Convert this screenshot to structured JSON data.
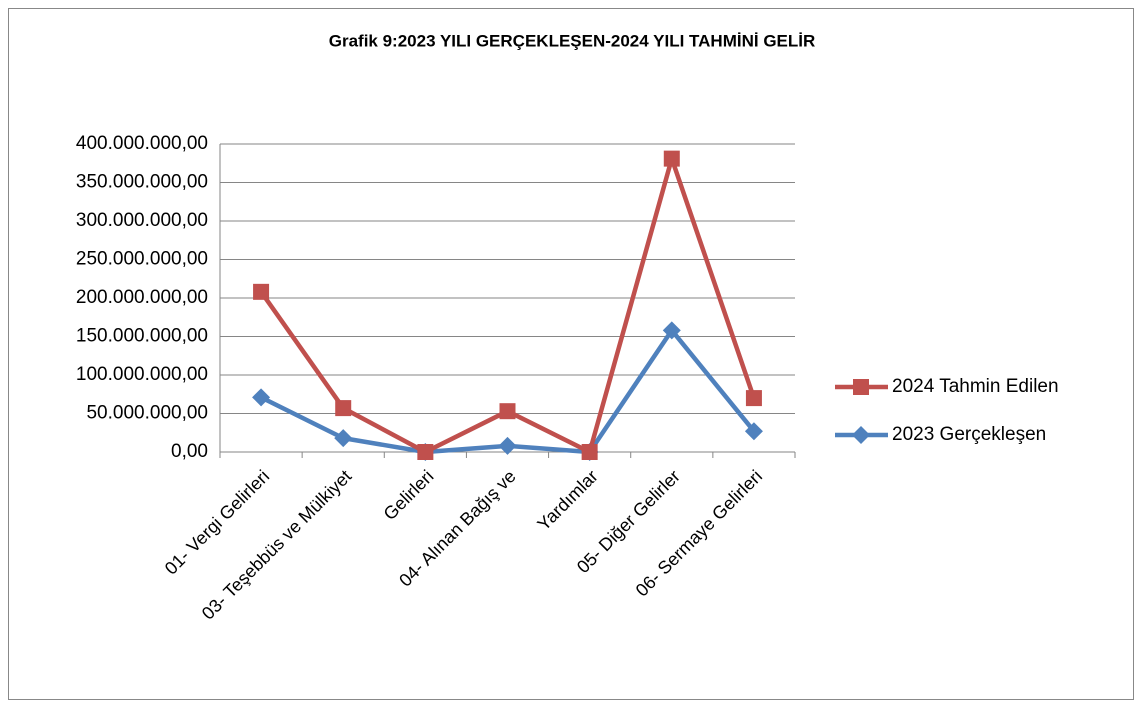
{
  "chart_data": {
    "type": "line",
    "title": "Grafik 9:2023 YILI GERÇEKLEŞEN-2024 YILI TAHMİNİ GELİR",
    "categories": [
      "01- Vergi Gelirleri",
      "03- Teşebbüs ve Mülkiyet",
      "Gelirleri",
      "04- Alınan Bağış ve",
      "Yardımlar",
      "05- Diğer Gelirler",
      "06- Sermaye Gelirleri"
    ],
    "series": [
      {
        "name": "2024 Tahmin Edilen",
        "color": "#c0504d",
        "marker": "square",
        "values": [
          208000000,
          57000000,
          0,
          53000000,
          0,
          381000000,
          70000000
        ]
      },
      {
        "name": "2023 Gerçekleşen",
        "color": "#4f81bd",
        "marker": "diamond",
        "values": [
          71000000,
          18000000,
          0,
          8000000,
          0,
          158000000,
          27000000
        ]
      }
    ],
    "ylim": [
      0,
      400000000
    ],
    "yticks": [
      {
        "value": 0,
        "label": "0,00"
      },
      {
        "value": 50000000,
        "label": "50.000.000,00"
      },
      {
        "value": 100000000,
        "label": "100.000.000,00"
      },
      {
        "value": 150000000,
        "label": "150.000.000,00"
      },
      {
        "value": 200000000,
        "label": "200.000.000,00"
      },
      {
        "value": 250000000,
        "label": "250.000.000,00"
      },
      {
        "value": 300000000,
        "label": "300.000.000,00"
      },
      {
        "value": 350000000,
        "label": "350.000.000,00"
      },
      {
        "value": 400000000,
        "label": "400.000.000,00"
      }
    ],
    "grid": true,
    "legend": "right"
  }
}
